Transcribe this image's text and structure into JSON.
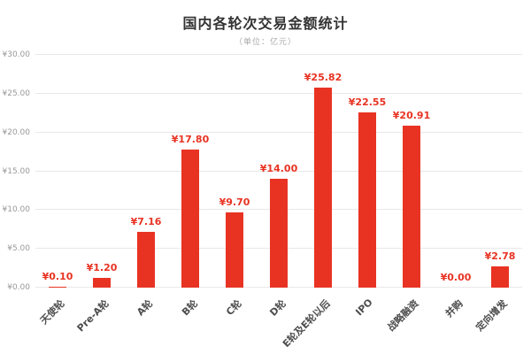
{
  "colors": {
    "bar": "#e83323",
    "grid": "#e8e8e8",
    "ytick_text": "#999999",
    "xtick_text": "#4d4d4d",
    "title_text": "#333333",
    "subtitle_text": "#aaaaaa",
    "background": "#ffffff"
  },
  "chart_data": {
    "type": "bar",
    "title": "国内各轮次交易金额统计",
    "subtitle": "（单位：亿元）",
    "categories": [
      "天使轮",
      "Pre-A轮",
      "A轮",
      "B轮",
      "C轮",
      "D轮",
      "E轮及E轮以后",
      "IPO",
      "战略融资",
      "并购",
      "定向增发"
    ],
    "values": [
      0.1,
      1.2,
      7.16,
      17.8,
      9.7,
      14.0,
      25.82,
      22.55,
      20.91,
      0.0,
      2.78
    ],
    "value_labels": [
      "¥0.10",
      "¥1.20",
      "¥7.16",
      "¥17.80",
      "¥9.70",
      "¥14.00",
      "¥25.82",
      "¥22.55",
      "¥20.91",
      "¥0.00",
      "¥2.78"
    ],
    "xlabel": "",
    "ylabel": "",
    "ylim": [
      0,
      30
    ],
    "ytick_step": 5,
    "ytick_labels": [
      "¥0.00",
      "¥5.00",
      "¥10.00",
      "¥15.00",
      "¥20.00",
      "¥25.00",
      "¥30.00"
    ],
    "grid": true,
    "legend": false
  }
}
